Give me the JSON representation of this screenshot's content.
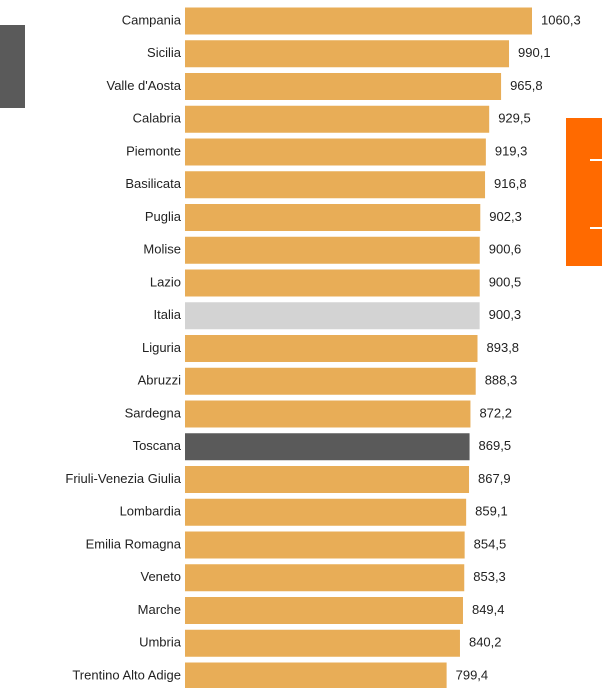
{
  "chart_data": {
    "type": "bar",
    "orientation": "horizontal",
    "categories": [
      "Campania",
      "Sicilia",
      "Valle d'Aosta",
      "Calabria",
      "Piemonte",
      "Basilicata",
      "Puglia",
      "Molise",
      "Lazio",
      "Italia",
      "Liguria",
      "Abruzzi",
      "Sardegna",
      "Toscana",
      "Friuli-Venezia Giulia",
      "Lombardia",
      "Emilia Romagna",
      "Veneto",
      "Marche",
      "Umbria",
      "Trentino Alto Adige"
    ],
    "values": [
      1060.3,
      990.1,
      965.8,
      929.5,
      919.3,
      916.8,
      902.3,
      900.6,
      900.5,
      900.3,
      893.8,
      888.3,
      872.2,
      869.5,
      867.9,
      859.1,
      854.5,
      853.3,
      849.4,
      840.2,
      799.4
    ],
    "value_labels": [
      "1060,3",
      "990,1",
      "965,8",
      "929,5",
      "919,3",
      "916,8",
      "902,3",
      "900,6",
      "900,5",
      "900,3",
      "893,8",
      "888,3",
      "872,2",
      "869,5",
      "867,9",
      "859,1",
      "854,5",
      "853,3",
      "849,4",
      "840,2",
      "799,4"
    ],
    "colors": [
      "#e8ad57",
      "#e8ad57",
      "#e8ad57",
      "#e8ad57",
      "#e8ad57",
      "#e8ad57",
      "#e8ad57",
      "#e8ad57",
      "#e8ad57",
      "#d3d3d3",
      "#e8ad57",
      "#e8ad57",
      "#e8ad57",
      "#5a5a5a",
      "#e8ad57",
      "#e8ad57",
      "#e8ad57",
      "#e8ad57",
      "#e8ad57",
      "#e8ad57",
      "#e8ad57"
    ]
  }
}
